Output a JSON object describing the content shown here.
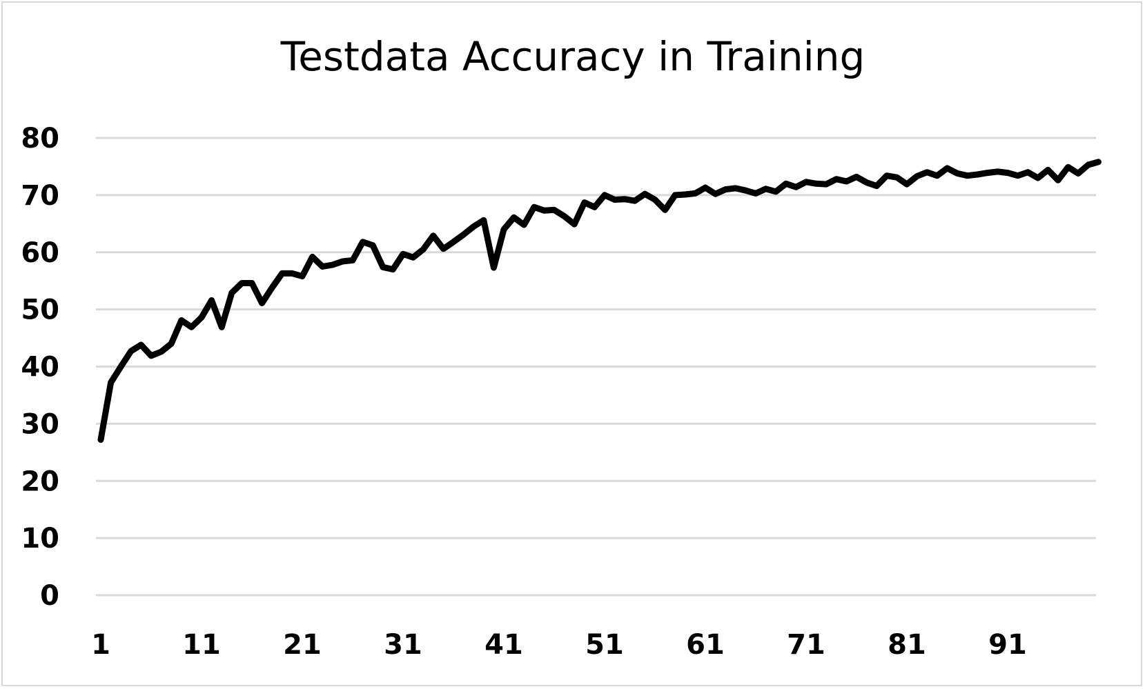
{
  "chart_data": {
    "type": "line",
    "title": "Testdata Accuracy in Training",
    "xlabel": "",
    "ylabel": "",
    "ylim": [
      0,
      80
    ],
    "y_ticks": [
      "0",
      "10",
      "20",
      "30",
      "40",
      "50",
      "60",
      "70",
      "80"
    ],
    "x_tick_labels": [
      "1",
      "11",
      "21",
      "31",
      "41",
      "51",
      "61",
      "71",
      "81",
      "91"
    ],
    "grid": true,
    "legend": "none",
    "line_color": "#000000",
    "grid_color": "#d9d9d9",
    "series": [
      {
        "values": [
          27.2,
          37.2,
          40.0,
          42.7,
          43.8,
          41.9,
          42.6,
          44.0,
          48.1,
          46.9,
          48.6,
          51.6,
          46.9,
          52.9,
          54.6,
          54.6,
          51.1,
          53.8,
          56.3,
          56.3,
          55.8,
          59.2,
          57.5,
          57.8,
          58.4,
          58.6,
          61.8,
          61.2,
          57.4,
          57.0,
          59.7,
          59.1,
          60.5,
          62.9,
          60.6,
          61.8,
          63.1,
          64.5,
          65.6,
          57.3,
          64.0,
          66.1,
          64.8,
          67.9,
          67.3,
          67.4,
          66.3,
          64.9,
          68.7,
          67.9,
          70.0,
          69.2,
          69.3,
          69.0,
          70.2,
          69.2,
          67.4,
          70.0,
          70.1,
          70.3,
          71.3,
          70.2,
          71.0,
          71.2,
          70.8,
          70.3,
          71.1,
          70.6,
          72.0,
          71.4,
          72.3,
          72.0,
          71.9,
          72.8,
          72.4,
          73.2,
          72.2,
          71.6,
          73.4,
          73.1,
          71.9,
          73.3,
          74.0,
          73.4,
          74.7,
          73.8,
          73.4,
          73.6,
          73.9,
          74.1,
          73.9,
          73.4,
          74.0,
          73.0,
          74.4,
          72.6,
          74.9,
          73.8,
          75.3,
          75.8
        ]
      }
    ]
  }
}
